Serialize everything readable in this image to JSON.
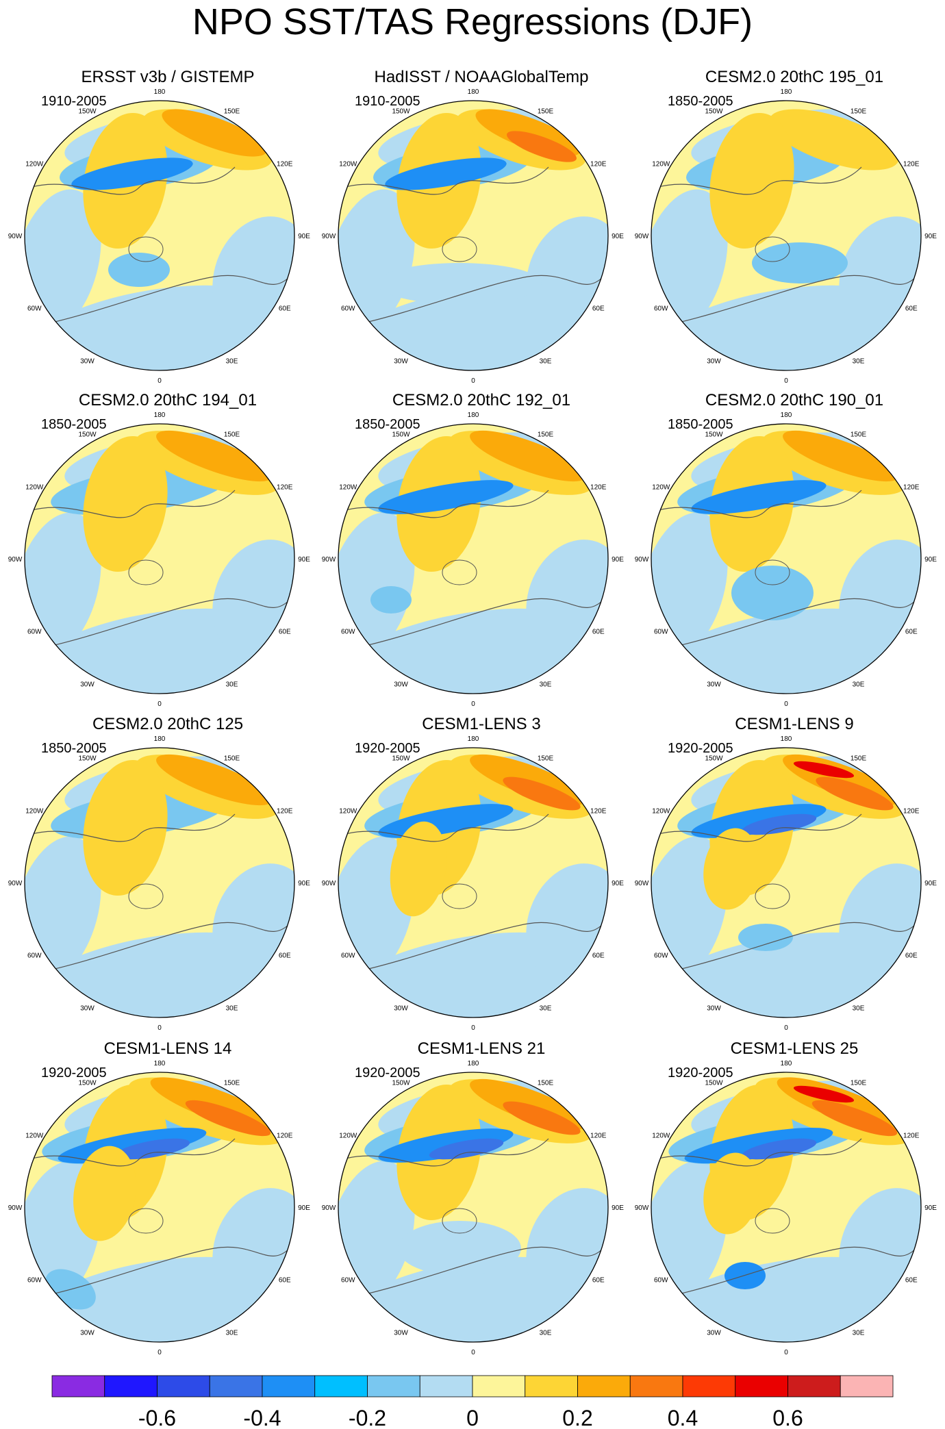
{
  "title": "NPO SST/TAS Regressions (DJF)",
  "longitude_labels": [
    "180",
    "150E",
    "120E",
    "90E",
    "60E",
    "30E",
    "0",
    "30W",
    "60W",
    "90W",
    "120W",
    "150W"
  ],
  "panels": [
    {
      "title": "ERSST v3b / GISTEMP",
      "period": "1910-2005"
    },
    {
      "title": "HadISST / NOAAGlobalTemp",
      "period": "1910-2005"
    },
    {
      "title": "CESM2.0 20thC 195_01",
      "period": "1850-2005"
    },
    {
      "title": "CESM2.0 20thC 194_01",
      "period": "1850-2005"
    },
    {
      "title": "CESM2.0 20thC 192_01",
      "period": "1850-2005"
    },
    {
      "title": "CESM2.0 20thC 190_01",
      "period": "1850-2005"
    },
    {
      "title": "CESM2.0 20thC 125",
      "period": "1850-2005"
    },
    {
      "title": "CESM1-LENS 3",
      "period": "1920-2005"
    },
    {
      "title": "CESM1-LENS 9",
      "period": "1920-2005"
    },
    {
      "title": "CESM1-LENS 14",
      "period": "1920-2005"
    },
    {
      "title": "CESM1-LENS 21",
      "period": "1920-2005"
    },
    {
      "title": "CESM1-LENS 25",
      "period": "1920-2005"
    }
  ],
  "colorbar": {
    "colors": [
      "#8a2be2",
      "#1f17ff",
      "#2d4be8",
      "#3a74e6",
      "#1e8ff5",
      "#00bfff",
      "#79c7f0",
      "#b3dcf2",
      "#fdf59a",
      "#fdd535",
      "#fbaa0a",
      "#f97810",
      "#fd3a05",
      "#ea0000",
      "#cd1c1c",
      "#fbb4b4"
    ],
    "labels": [
      "-0.6",
      "-0.4",
      "-0.2",
      "0",
      "0.2",
      "0.4",
      "0.6"
    ]
  },
  "colors": {
    "pale_blue": "#b3dcf2",
    "light_blue": "#79c7f0",
    "mid_blue": "#1e8ff5",
    "deep_blue": "#3a74e6",
    "pale_yellow": "#fdf59a",
    "gold": "#fdd535",
    "orange": "#fbaa0a",
    "dark_orange": "#f97810",
    "red": "#ea0000"
  }
}
